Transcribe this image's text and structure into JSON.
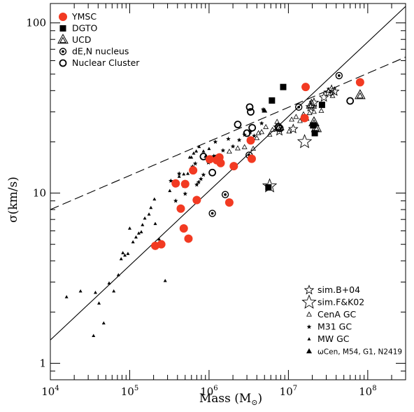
{
  "chart_data": {
    "type": "scatter",
    "title": "",
    "xlabel": "Mass (M",
    "xlabel_sub": "⊙",
    "xlabel_close": ")",
    "ylabel": "σ(km/s)",
    "x_scale": "log",
    "y_scale": "log",
    "xlim": [
      10000,
      300000000
    ],
    "ylim": [
      0.8,
      130
    ],
    "x_ticks": [
      {
        "value": 10000,
        "base": "10",
        "exp": "4"
      },
      {
        "value": 100000,
        "base": "10",
        "exp": "5"
      },
      {
        "value": 1000000,
        "base": "10",
        "exp": "6"
      },
      {
        "value": 10000000,
        "base": "10",
        "exp": "7"
      },
      {
        "value": 100000000,
        "base": "10",
        "exp": "8"
      }
    ],
    "y_ticks": [
      {
        "value": 1,
        "label": "1"
      },
      {
        "value": 10,
        "label": "10"
      },
      {
        "value": 100,
        "label": "100"
      }
    ],
    "legend_top": [
      {
        "label": "YMSC",
        "marker": "red-circle"
      },
      {
        "label": "DGTO",
        "marker": "filled-square"
      },
      {
        "label": "UCD",
        "marker": "nested-triangle"
      },
      {
        "label": "dE,N nucleus",
        "marker": "dotted-circle"
      },
      {
        "label": "Nuclear Cluster",
        "marker": "open-circle"
      }
    ],
    "legend_bottom": [
      {
        "label": "sim.B+04",
        "marker": "open-star-small"
      },
      {
        "label": "sim.F&K02",
        "marker": "open-star-large"
      },
      {
        "label": "CenA GC",
        "marker": "open-triangle"
      },
      {
        "label": "M31 GC",
        "marker": "small-star"
      },
      {
        "label": "MW GC",
        "marker": "filled-triangle"
      },
      {
        "label": "ωCen, M54, G1, N2419",
        "marker": "filled-triangle-large"
      }
    ],
    "lines": [
      {
        "style": "solid",
        "x": [
          10000,
          300000000
        ],
        "y": [
          1.37,
          125
        ]
      },
      {
        "style": "dashed",
        "x": [
          10000,
          300000000
        ],
        "y": [
          8.0,
          63
        ]
      }
    ],
    "series": [
      {
        "marker": "red-circle",
        "points": [
          [
            210000,
            4.9
          ],
          [
            250000,
            5.0
          ],
          [
            380000,
            11.4
          ],
          [
            440000,
            8.1
          ],
          [
            480000,
            6.2
          ],
          [
            500000,
            11.3
          ],
          [
            550000,
            5.4
          ],
          [
            630000,
            13.6
          ],
          [
            700000,
            9.1
          ],
          [
            1020000,
            15.8
          ],
          [
            1250000,
            15.6
          ],
          [
            1350000,
            16.2
          ],
          [
            1400000,
            15.0
          ],
          [
            1800000,
            8.8
          ],
          [
            2050000,
            14.4
          ],
          [
            3350000,
            20.4
          ],
          [
            3450000,
            15.9
          ],
          [
            16000000,
            27.6
          ],
          [
            16500000,
            42.0
          ],
          [
            80000000,
            44.8
          ]
        ]
      },
      {
        "marker": "filled-square",
        "points": [
          [
            5600000,
            10.8
          ],
          [
            6200000,
            35.0
          ],
          [
            8600000,
            42.0
          ],
          [
            20500000,
            25.0
          ],
          [
            21500000,
            22.5
          ],
          [
            26500000,
            33.0
          ]
        ]
      },
      {
        "marker": "nested-triangle",
        "points": [
          [
            19500000,
            33.0
          ],
          [
            21000000,
            26.0
          ],
          [
            22500000,
            24.0
          ],
          [
            80000000,
            37.5
          ]
        ]
      },
      {
        "marker": "dotted-circle",
        "points": [
          [
            1100000,
            7.6
          ],
          [
            1600000,
            9.8
          ],
          [
            3200000,
            16.7
          ],
          [
            13500000,
            32.0
          ],
          [
            43500000,
            49.0
          ]
        ]
      },
      {
        "marker": "open-circle",
        "points": [
          [
            850000,
            16.4
          ],
          [
            1100000,
            13.2
          ],
          [
            1250000,
            16.0
          ],
          [
            2300000,
            25.3
          ],
          [
            3000000,
            22.5
          ],
          [
            3250000,
            32.0
          ],
          [
            3350000,
            30.0
          ],
          [
            3500000,
            24.2
          ],
          [
            7500000,
            24.5
          ],
          [
            7800000,
            24.0
          ],
          [
            60000000,
            34.8
          ]
        ]
      },
      {
        "marker": "open-star-small",
        "points": [
          [
            7400000,
            24.3
          ],
          [
            7700000,
            23.1
          ],
          [
            11500000,
            23.8
          ],
          [
            19000000,
            32.0
          ],
          [
            21000000,
            34.0
          ],
          [
            28000000,
            36.5
          ],
          [
            32000000,
            39.0
          ],
          [
            35000000,
            40.5
          ],
          [
            38000000,
            39.5
          ]
        ]
      },
      {
        "marker": "open-star-large",
        "points": [
          [
            5800000,
            11.0
          ],
          [
            16000000,
            20.0
          ]
        ]
      },
      {
        "marker": "open-triangle",
        "points": [
          [
            1800000,
            17.5
          ],
          [
            2300000,
            18.3
          ],
          [
            2800000,
            18.6
          ],
          [
            3600000,
            18.2
          ],
          [
            4000000,
            21.0
          ],
          [
            4200000,
            22.5
          ],
          [
            4600000,
            22.8
          ],
          [
            5200000,
            24.4
          ],
          [
            5800000,
            22.0
          ],
          [
            6300000,
            23.5
          ],
          [
            7200000,
            26.2
          ],
          [
            8200000,
            24.0
          ],
          [
            10200000,
            23.0
          ],
          [
            11000000,
            27.0
          ],
          [
            12500000,
            28.0
          ],
          [
            14000000,
            26.5
          ],
          [
            15500000,
            29.0
          ],
          [
            17000000,
            27.3
          ],
          [
            18500000,
            29.5
          ],
          [
            21000000,
            30.0
          ],
          [
            26000000,
            30.4
          ],
          [
            32000000,
            40.0
          ],
          [
            36000000,
            37.2
          ]
        ]
      },
      {
        "marker": "small-star",
        "points": [
          [
            330000,
            11.8
          ],
          [
            380000,
            9.0
          ],
          [
            420000,
            13.0
          ],
          [
            480000,
            11.0
          ],
          [
            500000,
            9.9
          ],
          [
            620000,
            14.3
          ],
          [
            670000,
            14.9
          ],
          [
            700000,
            11.2
          ],
          [
            740000,
            11.6
          ],
          [
            790000,
            12.1
          ],
          [
            850000,
            12.8
          ],
          [
            980000,
            15.1
          ],
          [
            1150000,
            16.5
          ],
          [
            1200000,
            20.0
          ],
          [
            1500000,
            17.8
          ],
          [
            1750000,
            20.8
          ],
          [
            2000000,
            18.8
          ],
          [
            2400000,
            20.5
          ],
          [
            2800000,
            22.0
          ],
          [
            3300000,
            22.8
          ],
          [
            3700000,
            21.7
          ],
          [
            4600000,
            25.7
          ],
          [
            4800000,
            31.0
          ]
        ]
      },
      {
        "marker": "filled-triangle",
        "points": [
          [
            16000,
            2.45
          ],
          [
            24000,
            2.65
          ],
          [
            35000,
            1.45
          ],
          [
            37000,
            2.6
          ],
          [
            41000,
            2.25
          ],
          [
            47000,
            1.72
          ],
          [
            55000,
            2.95
          ],
          [
            63000,
            2.65
          ],
          [
            72000,
            3.3
          ],
          [
            78000,
            4.1
          ],
          [
            82000,
            4.45
          ],
          [
            87000,
            4.3
          ],
          [
            95000,
            4.4
          ],
          [
            100000,
            6.2
          ],
          [
            110000,
            5.15
          ],
          [
            120000,
            5.5
          ],
          [
            130000,
            5.8
          ],
          [
            140000,
            5.9
          ],
          [
            145000,
            6.5
          ],
          [
            155000,
            7.1
          ],
          [
            175000,
            7.5
          ],
          [
            185000,
            8.2
          ],
          [
            205000,
            9.2
          ],
          [
            210000,
            6.6
          ],
          [
            235000,
            5.35
          ],
          [
            280000,
            3.05
          ],
          [
            320000,
            10.3
          ],
          [
            370000,
            11.4
          ],
          [
            420000,
            12.5
          ],
          [
            480000,
            12.9
          ],
          [
            540000,
            13.0
          ],
          [
            570000,
            16.2
          ],
          [
            600000,
            16.2
          ],
          [
            640000,
            17.1
          ],
          [
            690000,
            17.6
          ],
          [
            750000,
            18.7
          ],
          [
            850000,
            17.6
          ],
          [
            900000,
            16.4
          ],
          [
            1000000,
            18.2
          ]
        ]
      },
      {
        "marker": "filled-triangle-large",
        "points": [
          [
            5000000,
            30.5
          ]
        ]
      }
    ]
  }
}
